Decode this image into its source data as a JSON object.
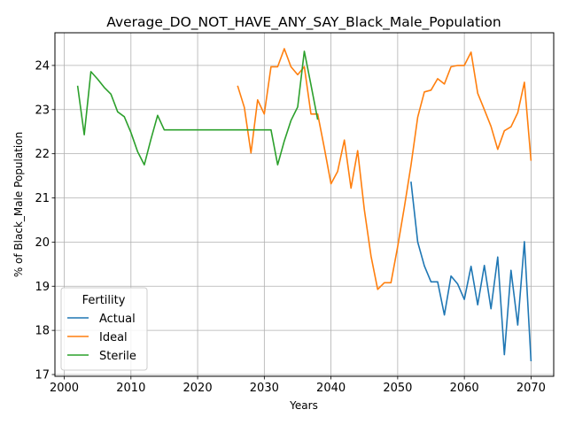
{
  "chart_data": {
    "type": "line",
    "title": "Average_DO_NOT_HAVE_ANY_SAY_Black_Male_Population",
    "xlabel": "Years",
    "ylabel": "% of Black_Male Population",
    "xlim": [
      1998.6,
      2073.4
    ],
    "ylim": [
      16.96,
      24.74
    ],
    "xticks": [
      2000,
      2010,
      2020,
      2030,
      2040,
      2050,
      2060,
      2070
    ],
    "yticks": [
      17,
      18,
      19,
      20,
      21,
      22,
      23,
      24
    ],
    "grid": true,
    "legend": {
      "title": "Fertility",
      "placement": "lower-left"
    },
    "series": [
      {
        "name": "Actual",
        "color": "#1f77b4",
        "x": [
          2052,
          2053,
          2054,
          2055,
          2056,
          2057,
          2058,
          2059,
          2060,
          2061,
          2062,
          2063,
          2064,
          2065,
          2066,
          2067,
          2068,
          2069,
          2070
        ],
        "y": [
          21.37,
          20.0,
          19.46,
          19.1,
          19.1,
          18.35,
          19.23,
          19.05,
          18.7,
          19.45,
          18.58,
          19.47,
          18.49,
          19.66,
          17.45,
          19.36,
          18.12,
          20.01,
          17.3
        ]
      },
      {
        "name": "Ideal",
        "color": "#ff7f0e",
        "x": [
          2026,
          2027,
          2028,
          2029,
          2030,
          2031,
          2032,
          2033,
          2034,
          2035,
          2036,
          2037,
          2038,
          2039,
          2040,
          2041,
          2042,
          2043,
          2044,
          2045,
          2046,
          2047,
          2048,
          2049,
          2050,
          2051,
          2052,
          2053,
          2054,
          2055,
          2056,
          2057,
          2058,
          2059,
          2060,
          2061,
          2062,
          2063,
          2064,
          2065,
          2066,
          2067,
          2068,
          2069,
          2070
        ],
        "y": [
          23.54,
          23.05,
          22.02,
          23.22,
          22.9,
          23.97,
          23.97,
          24.38,
          23.97,
          23.79,
          23.97,
          22.9,
          22.9,
          22.13,
          21.32,
          21.6,
          22.31,
          21.22,
          22.07,
          20.74,
          19.68,
          18.93,
          19.08,
          19.08,
          19.9,
          20.79,
          21.74,
          22.83,
          23.4,
          23.44,
          23.7,
          23.58,
          23.97,
          24.0,
          24.0,
          24.3,
          23.37,
          23.0,
          22.62,
          22.1,
          22.52,
          22.61,
          22.93,
          23.62,
          21.84
        ]
      },
      {
        "name": "Sterile",
        "color": "#2ca02c",
        "x": [
          2002,
          2003,
          2004,
          2005,
          2006,
          2007,
          2008,
          2009,
          2010,
          2011,
          2012,
          2013,
          2014,
          2015,
          2016,
          2017,
          2018,
          2019,
          2020,
          2021,
          2022,
          2023,
          2024,
          2025,
          2026,
          2027,
          2028,
          2029,
          2030,
          2031,
          2032,
          2033,
          2034,
          2035,
          2036,
          2037,
          2038
        ],
        "y": [
          23.54,
          22.43,
          23.86,
          23.69,
          23.5,
          23.35,
          22.95,
          22.84,
          22.48,
          22.05,
          21.75,
          22.33,
          22.87,
          22.54,
          22.54,
          22.54,
          22.54,
          22.54,
          22.54,
          22.54,
          22.54,
          22.54,
          22.54,
          22.54,
          22.54,
          22.54,
          22.54,
          22.54,
          22.54,
          22.54,
          21.75,
          22.29,
          22.75,
          23.06,
          24.32,
          23.56,
          22.77
        ]
      }
    ]
  }
}
